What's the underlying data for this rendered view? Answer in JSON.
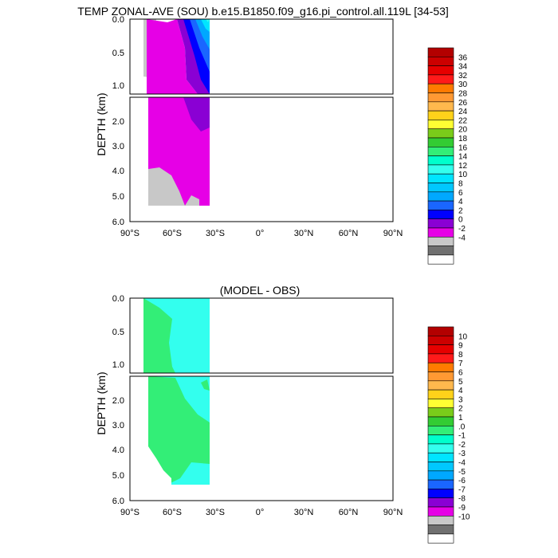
{
  "chart_data": [
    {
      "type": "heatmap",
      "title": "TEMP ZONAL-AVE (SOU) b.e15.B1850.f09_g16.pi_control.all.119L [34-53]",
      "ylabel": "DEPTH (km)",
      "x_ticks": [
        "90°S",
        "60°S",
        "30°S",
        "0°",
        "30°N",
        "60°N",
        "90°N"
      ],
      "x_range": [
        -90,
        90
      ],
      "y_ticks_upper": [
        "0.0",
        "0.5",
        "1.0"
      ],
      "y_ticks_lower": [
        "2.0",
        "3.0",
        "4.0",
        "5.0",
        "6.0"
      ],
      "y_range_upper_km": [
        0,
        1.1
      ],
      "y_range_lower_km": [
        1.1,
        6
      ],
      "legend_labels": [
        "36",
        "34",
        "32",
        "30",
        "28",
        "26",
        "24",
        "22",
        "20",
        "18",
        "16",
        "14",
        "12",
        "10",
        "8",
        "6",
        "4",
        "2",
        "0",
        "-2",
        "-4"
      ],
      "legend_colors": [
        "#b30000",
        "#cc0000",
        "#e60000",
        "#ff1a1a",
        "#ff7a00",
        "#ff9933",
        "#ffb84d",
        "#ffd21a",
        "#ffff33",
        "#7acc1a",
        "#33cc33",
        "#33ee77",
        "#00ffcc",
        "#33ffee",
        "#00e5ff",
        "#00c8ff",
        "#00a8ff",
        "#1a66ff",
        "#0000ff",
        "#8a00d4",
        "#e600e6",
        "#c8c8c8",
        "#707070",
        "#ffffff"
      ]
    },
    {
      "type": "heatmap",
      "title": "(MODEL - OBS)",
      "ylabel": "DEPTH (km)",
      "x_ticks": [
        "90°S",
        "60°S",
        "30°S",
        "0°",
        "30°N",
        "60°N",
        "90°N"
      ],
      "x_range": [
        -90,
        90
      ],
      "y_ticks_upper": [
        "0.0",
        "0.5",
        "1.0"
      ],
      "y_ticks_lower": [
        "2.0",
        "3.0",
        "4.0",
        "5.0",
        "6.0"
      ],
      "y_range_upper_km": [
        0,
        1.1
      ],
      "y_range_lower_km": [
        1.1,
        6
      ],
      "legend_labels": [
        "10",
        "9",
        "8",
        "7",
        "6",
        "5",
        "4",
        "3",
        "2",
        "1",
        ".0",
        "-1",
        "-2",
        "-3",
        "-4",
        "-5",
        "-6",
        "-7",
        "-8",
        "-9",
        "-10"
      ],
      "legend_colors": [
        "#b30000",
        "#cc0000",
        "#e60000",
        "#ff1a1a",
        "#ff7a00",
        "#ff9933",
        "#ffb84d",
        "#ffd21a",
        "#ffff33",
        "#7acc1a",
        "#33cc33",
        "#33ee77",
        "#00ffcc",
        "#33ffee",
        "#00e5ff",
        "#00c8ff",
        "#00a8ff",
        "#1a66ff",
        "#0000ff",
        "#8a00d4",
        "#e600e6",
        "#c8c8c8",
        "#707070",
        "#ffffff"
      ]
    }
  ]
}
